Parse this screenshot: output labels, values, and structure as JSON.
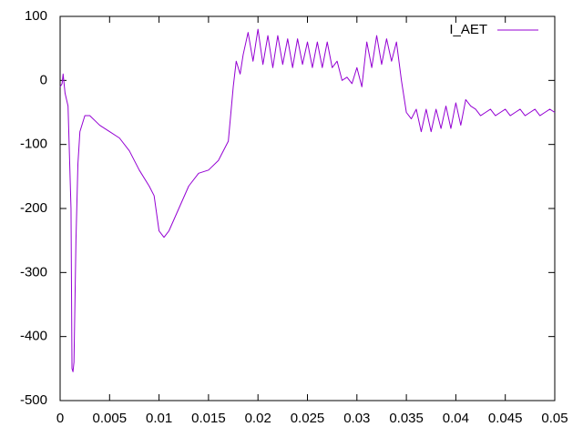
{
  "chart_data": {
    "type": "line",
    "x": [
      0,
      0.0002,
      0.0003,
      0.0005,
      0.0008,
      0.0011,
      0.0012,
      0.0013,
      0.0014,
      0.0016,
      0.0018,
      0.002,
      0.0025,
      0.003,
      0.004,
      0.005,
      0.006,
      0.007,
      0.008,
      0.009,
      0.0095,
      0.01,
      0.0105,
      0.011,
      0.012,
      0.013,
      0.014,
      0.015,
      0.016,
      0.017,
      0.0175,
      0.0178,
      0.0182,
      0.0185,
      0.019,
      0.0195,
      0.02,
      0.0205,
      0.021,
      0.0215,
      0.022,
      0.0225,
      0.023,
      0.0235,
      0.024,
      0.0245,
      0.025,
      0.0255,
      0.026,
      0.0265,
      0.027,
      0.0275,
      0.028,
      0.0285,
      0.029,
      0.0295,
      0.03,
      0.0305,
      0.031,
      0.0315,
      0.032,
      0.0325,
      0.033,
      0.0335,
      0.034,
      0.0345,
      0.035,
      0.0355,
      0.036,
      0.0365,
      0.037,
      0.0375,
      0.038,
      0.0385,
      0.039,
      0.0395,
      0.04,
      0.0405,
      0.041,
      0.0415,
      0.042,
      0.0425,
      0.043,
      0.0435,
      0.044,
      0.0445,
      0.045,
      0.0455,
      0.046,
      0.0465,
      0.047,
      0.0475,
      0.048,
      0.0485,
      0.049,
      0.0495,
      0.05
    ],
    "series": [
      {
        "name": "I_AET",
        "color": "#9400d3",
        "values": [
          -10,
          -5,
          10,
          -20,
          -40,
          -200,
          -450,
          -455,
          -440,
          -250,
          -130,
          -80,
          -55,
          -55,
          -70,
          -80,
          -90,
          -110,
          -140,
          -165,
          -180,
          -235,
          -245,
          -235,
          -200,
          -165,
          -145,
          -140,
          -125,
          -95,
          -10,
          30,
          10,
          40,
          75,
          30,
          80,
          25,
          70,
          20,
          70,
          25,
          65,
          20,
          65,
          25,
          60,
          20,
          60,
          20,
          60,
          20,
          30,
          0,
          5,
          -5,
          20,
          -10,
          60,
          20,
          70,
          25,
          65,
          30,
          60,
          0,
          -50,
          -60,
          -45,
          -80,
          -45,
          -80,
          -45,
          -75,
          -40,
          -75,
          -35,
          -70,
          -30,
          -40,
          -45,
          -55,
          -50,
          -45,
          -55,
          -50,
          -45,
          -55,
          -50,
          -45,
          -55,
          -50,
          -45,
          -55,
          -50,
          -45,
          -50
        ]
      }
    ],
    "xlim": [
      0,
      0.05
    ],
    "xticks": [
      0,
      0.005,
      0.01,
      0.015,
      0.02,
      0.025,
      0.03,
      0.035,
      0.04,
      0.045,
      0.05
    ],
    "ylim": [
      -500,
      100
    ],
    "yticks": [
      -500,
      -400,
      -300,
      -200,
      -100,
      0,
      100
    ],
    "legend": "top-right"
  }
}
